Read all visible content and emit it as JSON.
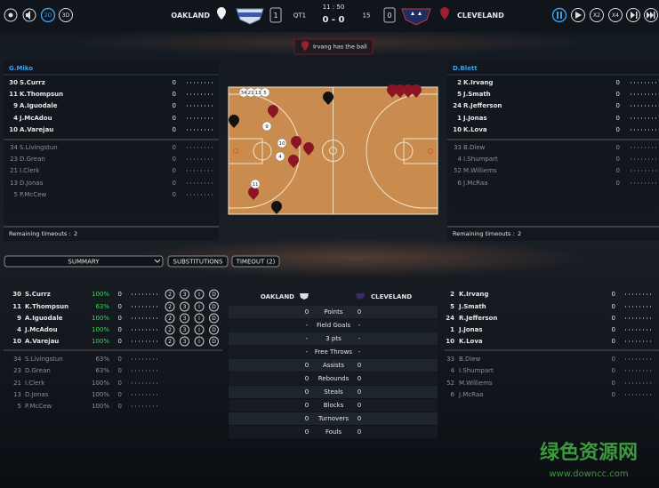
{
  "top_bar": {
    "view_2d": "2D",
    "view_3d": "3D",
    "home_team": "OAKLAND",
    "home_timeouts": "1",
    "quarter": "QT1",
    "clock": "11 : 50",
    "score": "0 - 0",
    "shot_clock": "15",
    "away_timeouts": "0",
    "away_team": "CLEVELAND",
    "speed_x2": "X2",
    "speed_x4": "X4"
  },
  "banner": "Irvang has the ball",
  "home_panel": {
    "coach": "G.Miko",
    "starters": [
      [
        "30",
        "S.Currz",
        "0"
      ],
      [
        "11",
        "K.Thompsun",
        "0"
      ],
      [
        "9",
        "A.Iguodale",
        "0"
      ],
      [
        "4",
        "J.McAdou",
        "0"
      ],
      [
        "10",
        "A.Varejau",
        "0"
      ]
    ],
    "bench": [
      [
        "34",
        "S.Livingstun",
        "0"
      ],
      [
        "23",
        "D.Grean",
        "0"
      ],
      [
        "21",
        "I.Clerk",
        "0"
      ],
      [
        "13",
        "D.Jonas",
        "0"
      ],
      [
        "5",
        "P.McCew",
        "0"
      ]
    ],
    "timeouts_label": "Remaining timeouts :",
    "timeouts": "2"
  },
  "away_panel": {
    "coach": "D.Blett",
    "starters": [
      [
        "2",
        "K.Irvang",
        "0"
      ],
      [
        "5",
        "J.Smath",
        "0"
      ],
      [
        "24",
        "R.Jefferson",
        "0"
      ],
      [
        "1",
        "J.Jonas",
        "0"
      ],
      [
        "10",
        "K.Lova",
        "0"
      ]
    ],
    "bench": [
      [
        "33",
        "B.Diew",
        "0"
      ],
      [
        "4",
        "I.Shumpart",
        "0"
      ],
      [
        "52",
        "M.Williems",
        "0"
      ],
      [
        "6",
        "J.McRaa",
        "0"
      ]
    ],
    "timeouts_label": "Remaining timeouts :",
    "timeouts": "2"
  },
  "court": {
    "markers": [
      "34",
      "21",
      "13",
      "5",
      "9",
      "10",
      "4",
      "11"
    ]
  },
  "tabs": [
    "SUMMARY",
    "SUBSTITUTIONS",
    "TIMEOUT (2)"
  ],
  "home_summary": {
    "starters": [
      [
        "30",
        "S.Currz",
        "100%",
        "0"
      ],
      [
        "11",
        "K.Thompsun",
        "63%",
        "0"
      ],
      [
        "9",
        "A.Iguodale",
        "100%",
        "0"
      ],
      [
        "4",
        "J.McAdou",
        "100%",
        "0"
      ],
      [
        "10",
        "A.Varejau",
        "100%",
        "0"
      ]
    ],
    "bench": [
      [
        "34",
        "S.Livingstun",
        "63%",
        "0"
      ],
      [
        "23",
        "D.Grean",
        "63%",
        "0"
      ],
      [
        "21",
        "I.Clerk",
        "100%",
        "0"
      ],
      [
        "13",
        "D.Jonas",
        "100%",
        "0"
      ],
      [
        "5",
        "P.McCew",
        "100%",
        "0"
      ]
    ]
  },
  "shot_buttons": [
    "2",
    "3",
    "I",
    "D"
  ],
  "team_stats": {
    "home": "OAKLAND",
    "away": "CLEVELAND",
    "rows": [
      [
        "0",
        "Points",
        "0"
      ],
      [
        "-",
        "Field Goals",
        "-"
      ],
      [
        "-",
        "3 pts",
        "-"
      ],
      [
        "-",
        "Free Throws",
        "-"
      ],
      [
        "0",
        "Assists",
        "0"
      ],
      [
        "0",
        "Rebounds",
        "0"
      ],
      [
        "0",
        "Steals",
        "0"
      ],
      [
        "0",
        "Blocks",
        "0"
      ],
      [
        "0",
        "Turnovers",
        "0"
      ],
      [
        "0",
        "Fouls",
        "0"
      ]
    ]
  },
  "away_summary": {
    "starters": [
      [
        "2",
        "K.Irvang",
        "0"
      ],
      [
        "5",
        "J.Smath",
        "0"
      ],
      [
        "24",
        "R.Jefferson",
        "0"
      ],
      [
        "1",
        "J.Jonas",
        "0"
      ],
      [
        "10",
        "K.Lova",
        "0"
      ]
    ],
    "bench": [
      [
        "33",
        "B.Diew",
        "0"
      ],
      [
        "4",
        "I.Shumpart",
        "0"
      ],
      [
        "52",
        "M.Williems",
        "0"
      ],
      [
        "6",
        "J.McRaa",
        "0"
      ]
    ]
  },
  "watermark": {
    "title": "绿色资源网",
    "url": "www.downcc.com"
  }
}
